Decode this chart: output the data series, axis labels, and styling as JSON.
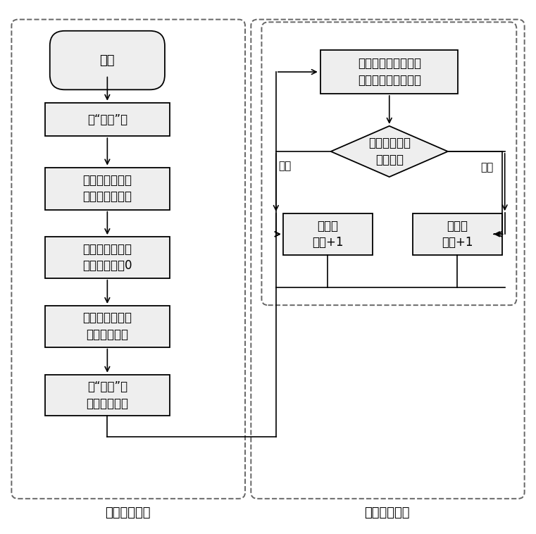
{
  "background_color": "#ffffff",
  "fig_width": 7.61,
  "fig_height": 7.58,
  "dpi": 100,
  "fill_color": "#eeeeee",
  "line_color": "#000000",
  "label_left": "手动操作部分",
  "label_right": "自动计数部分",
  "label_greater": "大于",
  "label_less": "小于",
  "text_start": "开机",
  "text_step1": "按“设置”键",
  "text_step2": "将光纤探头分别\n对准某条暗条纹",
  "text_step3": "调节参考电阻，\n使输出接近为0",
  "text_step4": "调节光路，使光\n纤对准亮条纹",
  "text_step5": "按“确认”键\n开始条纹计数",
  "text_calc": "计算亮条纹和暗条纹\n的平均值，作为阈值",
  "text_diamond": "判断测量值与\n阈值大小",
  "text_bright": "亮条纹\n计数+1",
  "text_dark": "暗条纹\n计数+1"
}
